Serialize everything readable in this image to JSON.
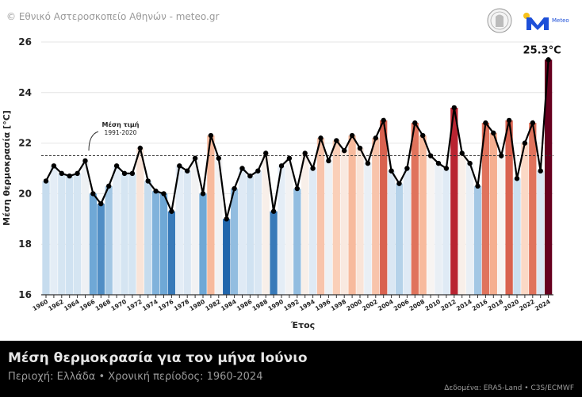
{
  "header": {
    "credit": "© Εθνικό Αστεροσκοπείο Αθηνών - meteo.gr",
    "logo_text": "Meteo"
  },
  "footer": {
    "title": "Μέση θερμοκρασία για τον μήνα Ιούνιο",
    "subtitle": "Περιοχή: Ελλάδα • Χρονική περίοδος: 1960-2024",
    "source": "Δεδομένα: ERA5-Land • C3S/ECMWF"
  },
  "chart_data": {
    "type": "bar+line",
    "xlabel": "Έτος",
    "ylabel": "Μέση θερμοκρασία [°C]",
    "ylim": [
      16,
      26
    ],
    "yticks": [
      "16",
      "18",
      "20",
      "22",
      "24",
      "26"
    ],
    "grid": true,
    "x": [
      1960,
      1961,
      1962,
      1963,
      1964,
      1965,
      1966,
      1967,
      1968,
      1969,
      1970,
      1971,
      1972,
      1973,
      1974,
      1975,
      1976,
      1977,
      1978,
      1979,
      1980,
      1981,
      1982,
      1983,
      1984,
      1985,
      1986,
      1987,
      1988,
      1989,
      1990,
      1991,
      1992,
      1993,
      1994,
      1995,
      1996,
      1997,
      1998,
      1999,
      2000,
      2001,
      2002,
      2003,
      2004,
      2005,
      2006,
      2007,
      2008,
      2009,
      2010,
      2011,
      2012,
      2013,
      2014,
      2015,
      2016,
      2017,
      2018,
      2019,
      2020,
      2021,
      2022,
      2023,
      2024
    ],
    "xtick_labels": [
      "1960",
      "1962",
      "1964",
      "1966",
      "1968",
      "1970",
      "1972",
      "1974",
      "1976",
      "1978",
      "1980",
      "1982",
      "1984",
      "1986",
      "1988",
      "1990",
      "1992",
      "1994",
      "1996",
      "1998",
      "2000",
      "2002",
      "2004",
      "2006",
      "2008",
      "2010",
      "2012",
      "2014",
      "2016",
      "2018",
      "2020",
      "2022",
      "2024"
    ],
    "values": [
      20.5,
      21.1,
      20.8,
      20.7,
      20.8,
      21.3,
      20.0,
      19.6,
      20.3,
      21.1,
      20.8,
      20.8,
      21.8,
      20.5,
      20.1,
      20.0,
      19.3,
      21.1,
      20.9,
      21.4,
      20.0,
      22.3,
      21.4,
      19.0,
      20.2,
      21.0,
      20.7,
      20.9,
      21.6,
      19.3,
      21.1,
      21.4,
      20.2,
      21.6,
      21.0,
      22.2,
      21.3,
      22.1,
      21.7,
      22.3,
      21.8,
      21.2,
      22.2,
      22.9,
      20.9,
      20.4,
      21.0,
      22.8,
      22.3,
      21.5,
      21.2,
      21.0,
      23.4,
      21.6,
      21.2,
      20.3,
      22.8,
      22.4,
      21.5,
      22.9,
      20.6,
      22.0,
      22.8,
      20.9,
      25.3
    ],
    "reference": {
      "value": 21.5,
      "label_line1": "Μέση τιμή",
      "label_line2": "1991-2020"
    },
    "highlight_label": "25.3°C",
    "colormap": [
      {
        "anomaly": -2.5,
        "color": "#2166ac"
      },
      {
        "anomaly": -1.5,
        "color": "#6fa8d6"
      },
      {
        "anomaly": -1.0,
        "color": "#c6dcee"
      },
      {
        "anomaly": -0.4,
        "color": "#e4edf6"
      },
      {
        "anomaly": 0.0,
        "color": "#f7f4f2"
      },
      {
        "anomaly": 0.5,
        "color": "#fbd9c6"
      },
      {
        "anomaly": 1.0,
        "color": "#f4a582"
      },
      {
        "anomaly": 1.4,
        "color": "#d9624f"
      },
      {
        "anomaly": 2.0,
        "color": "#b2182b"
      },
      {
        "anomaly": 3.8,
        "color": "#67001f"
      }
    ]
  }
}
